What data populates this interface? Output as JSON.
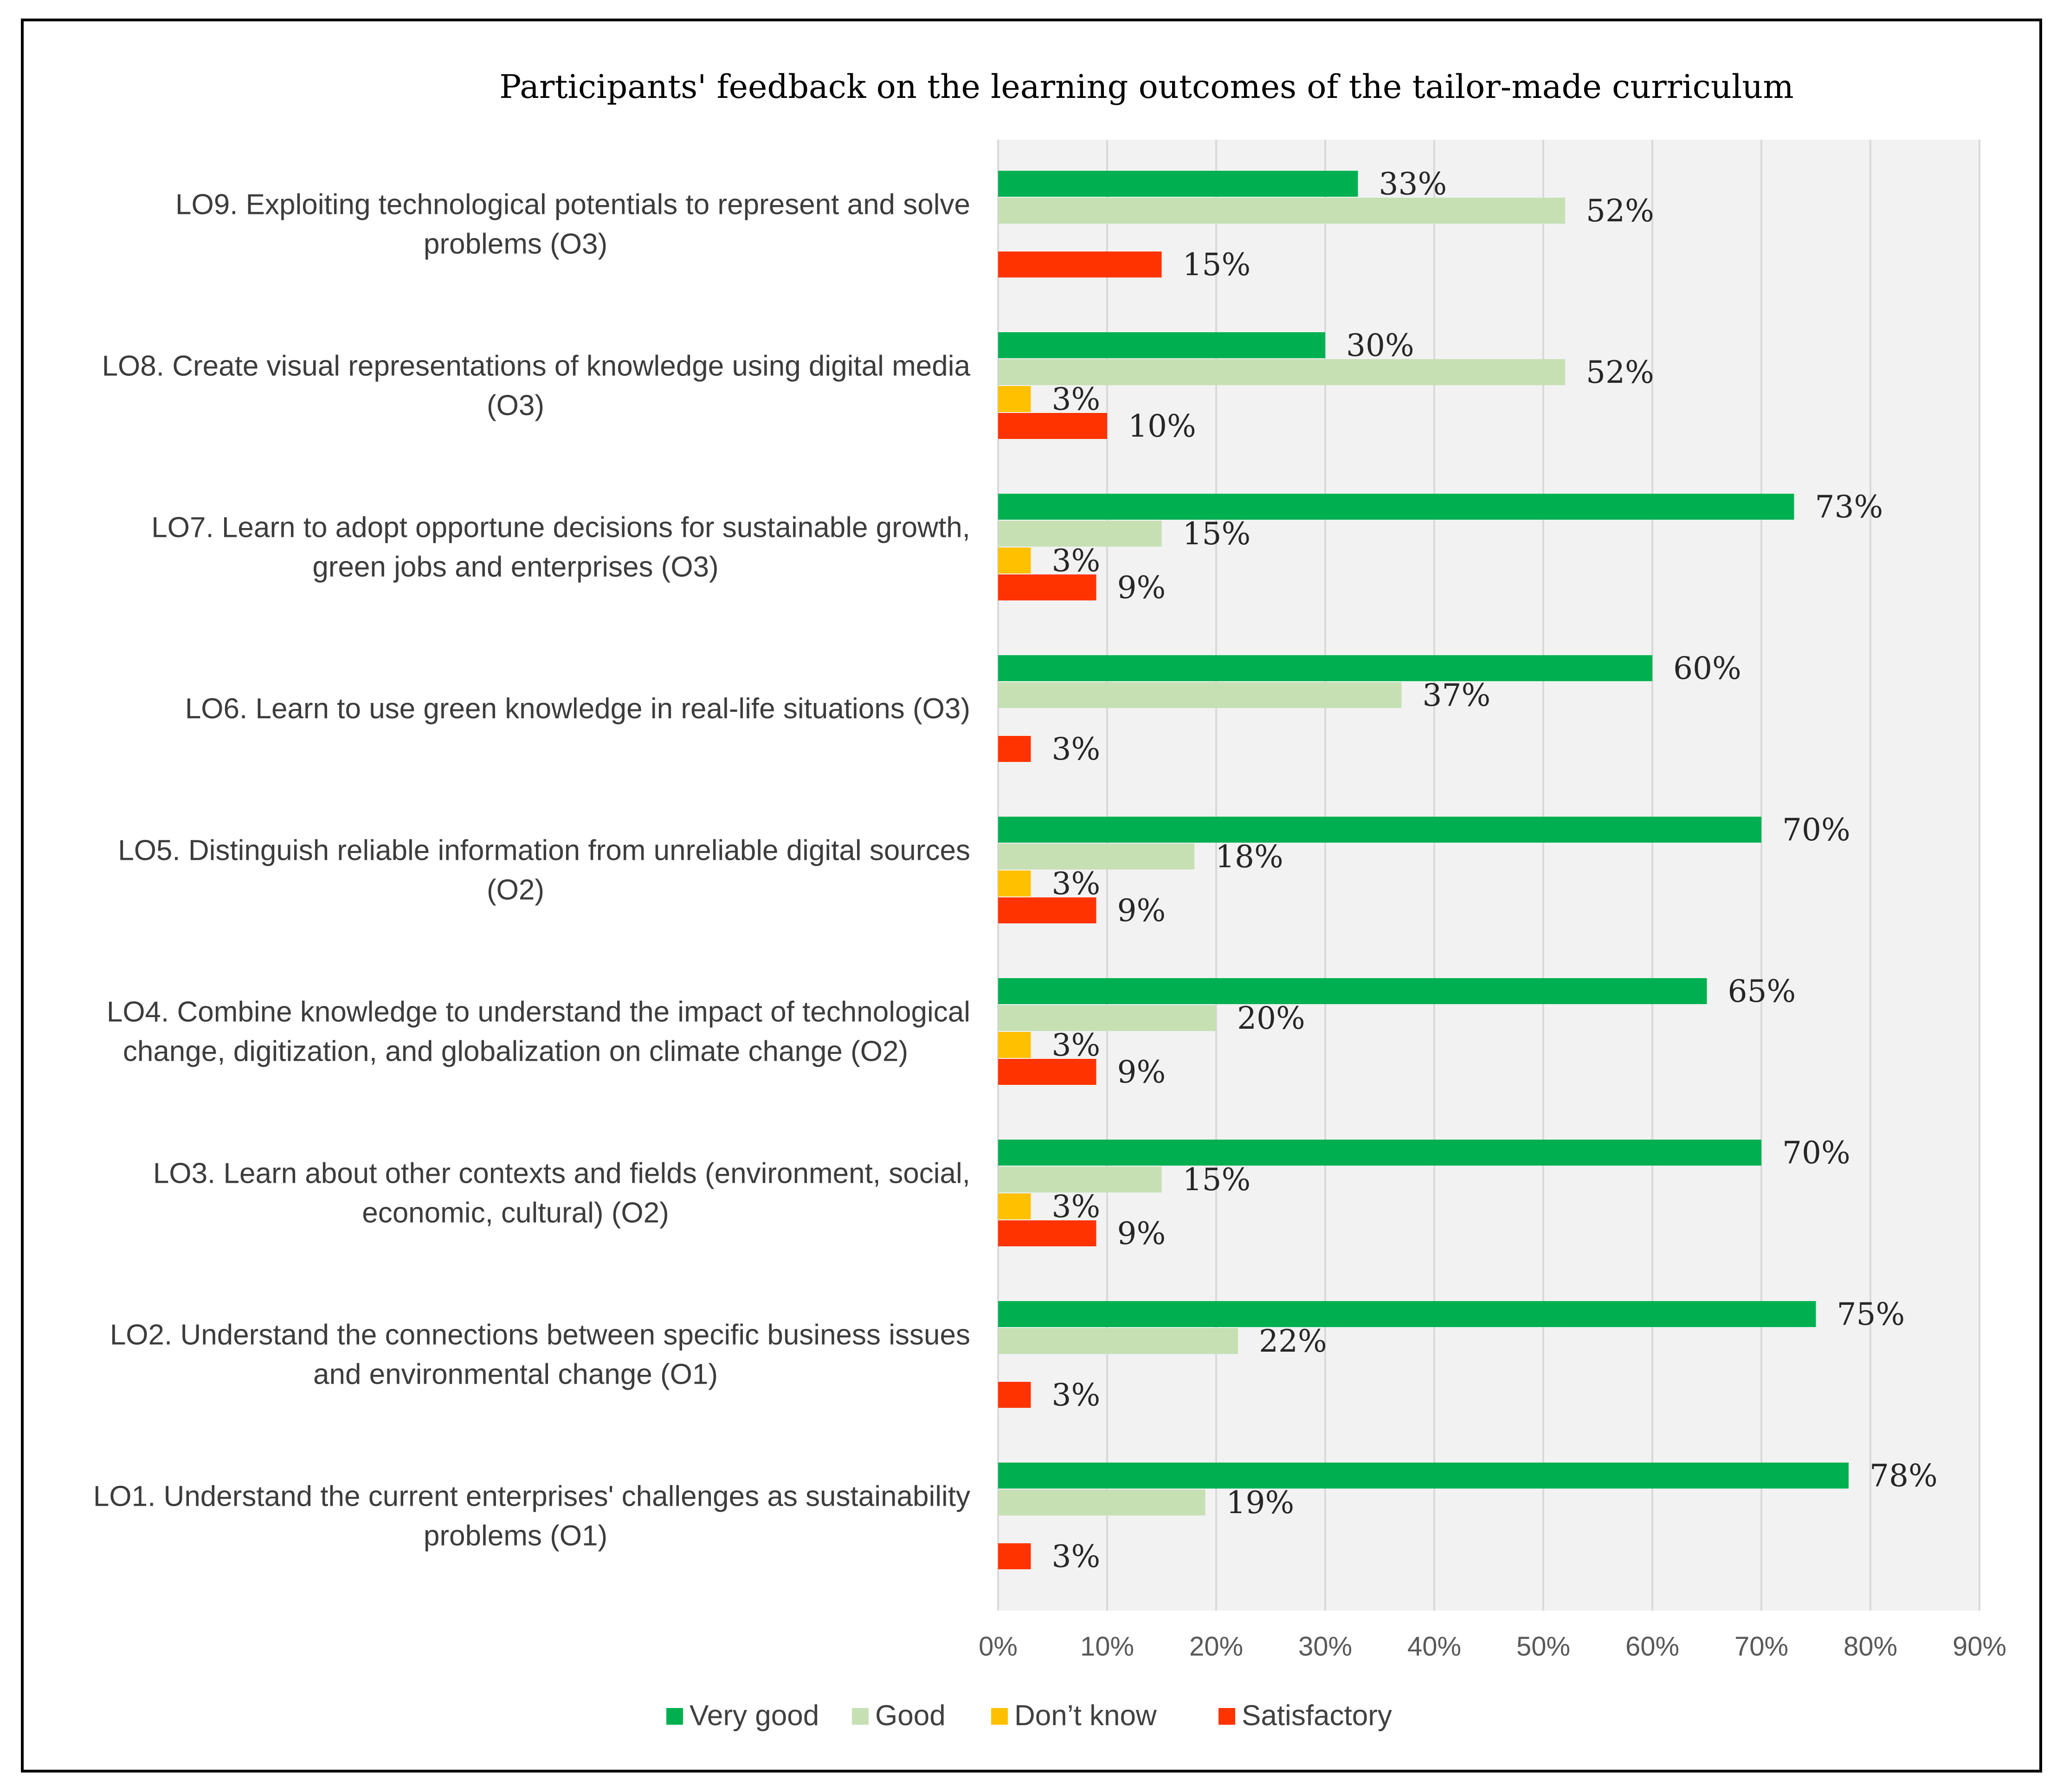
{
  "chart_data": {
    "type": "bar",
    "orientation": "horizontal",
    "title": "Participants' feedback on the learning outcomes of the tailor-made curriculum",
    "categories": [
      [
        "LO9. Exploiting technological potentials to represent and solve",
        "problems (O3)"
      ],
      [
        "LO8. Create visual representations of knowledge using digital media",
        "(O3)"
      ],
      [
        "LO7. Learn to adopt opportune decisions for sustainable growth,",
        "green jobs and enterprises (O3)"
      ],
      [
        "LO6. Learn to use green knowledge in real-life situations (O3)"
      ],
      [
        "LO5. Distinguish reliable information from unreliable digital sources",
        "(O2)"
      ],
      [
        "LO4. Combine knowledge to understand the impact of technological",
        "change, digitization, and globalization on climate change (O2)"
      ],
      [
        "LO3. Learn about other contexts and fields (environment, social,",
        "economic, cultural) (O2)"
      ],
      [
        "LO2. Understand the connections between specific business issues",
        "and environmental change (O1)"
      ],
      [
        "LO1. Understand the current enterprises' challenges as sustainability",
        "problems (O1)"
      ]
    ],
    "series": [
      {
        "name": "Very good",
        "color": "#00b050",
        "values": [
          33,
          30,
          73,
          60,
          70,
          65,
          70,
          75,
          78
        ]
      },
      {
        "name": "Good",
        "color": "#c6e0b4",
        "values": [
          52,
          52,
          15,
          37,
          18,
          20,
          15,
          22,
          19
        ]
      },
      {
        "name": "Don’t know",
        "color": "#ffc000",
        "values": [
          null,
          3,
          3,
          null,
          3,
          3,
          3,
          null,
          null
        ]
      },
      {
        "name": "Satisfactory",
        "color": "#ff3300",
        "values": [
          15,
          10,
          9,
          3,
          9,
          9,
          9,
          3,
          3
        ]
      }
    ],
    "value_suffix": "%",
    "xlim": [
      0,
      90
    ],
    "xticks": [
      0,
      10,
      20,
      30,
      40,
      50,
      60,
      70,
      80,
      90
    ],
    "xtick_labels": [
      "0%",
      "10%",
      "20%",
      "30%",
      "40%",
      "50%",
      "60%",
      "70%",
      "80%",
      "90%"
    ],
    "xlabel": "",
    "ylabel": "",
    "grid": true,
    "plot_background": "#f2f2f2",
    "legend_position": "bottom"
  }
}
